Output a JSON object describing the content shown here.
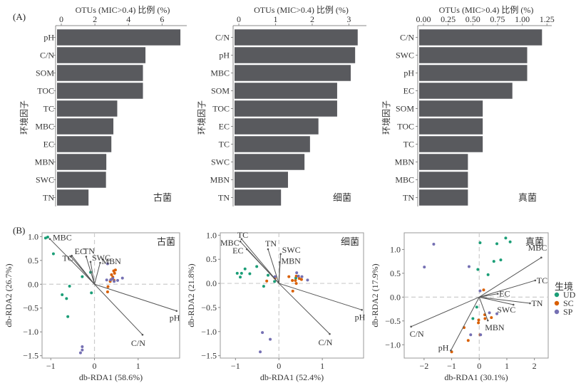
{
  "figure": {
    "panel_labels": [
      "(A)",
      "(B)"
    ],
    "legend": {
      "title": "生境",
      "entries": [
        {
          "label": "UD",
          "color": "#1b9e77"
        },
        {
          "label": "SC",
          "color": "#d95f02"
        },
        {
          "label": "SP",
          "color": "#7570b3"
        }
      ]
    },
    "colors": {
      "bar": "#595a5e",
      "vector": "#555555",
      "zero_line": "#cccccc"
    }
  },
  "chart_data": [
    {
      "type": "bar",
      "orientation": "horizontal",
      "title": "OTUs (MIC>0.4) 比例 (%)",
      "annotation": "古菌",
      "ylabel": "环境因子",
      "categories": [
        "pH",
        "C/N",
        "SOM",
        "TOC",
        "TC",
        "MBC",
        "EC",
        "MBN",
        "SWC",
        "TN"
      ],
      "values": [
        7.09,
        5.01,
        4.86,
        4.86,
        3.33,
        3.1,
        2.98,
        2.68,
        2.66,
        1.62
      ],
      "xticks": [
        "0",
        "2",
        "4",
        "6"
      ],
      "xtick_values": [
        0,
        2,
        4,
        6
      ],
      "xlim": [
        0,
        7.3
      ]
    },
    {
      "type": "bar",
      "orientation": "horizontal",
      "title": "OTUs (MIC>0.4) 比例 (%)",
      "annotation": "细菌",
      "ylabel": "环境因子",
      "categories": [
        "C/N",
        "pH",
        "MBC",
        "SOM",
        "TOC",
        "EC",
        "TC",
        "SWC",
        "MBN",
        "TN"
      ],
      "values": [
        3.24,
        3.17,
        3.05,
        2.68,
        2.68,
        2.17,
        1.94,
        1.79,
        1.34,
        1.15
      ],
      "xticks": [
        "0",
        "1",
        "2",
        "3"
      ],
      "xtick_values": [
        0,
        1,
        2,
        3
      ],
      "xlim": [
        0,
        3.4
      ]
    },
    {
      "type": "bar",
      "orientation": "horizontal",
      "title": "OTUs (MIC>0.4) 比例 (%)",
      "annotation": "真菌",
      "ylabel": "环境因子",
      "categories": [
        "C/N",
        "SWC",
        "pH",
        "EC",
        "SOM",
        "TOC",
        "TC",
        "MBN",
        "MBC",
        "TN"
      ],
      "values": [
        1.2,
        1.05,
        1.05,
        0.9,
        0.6,
        0.6,
        0.6,
        0.45,
        0.45,
        0.45
      ],
      "xticks": [
        "0.00",
        "0.25",
        "0.50",
        "0.75",
        "1.00",
        "1.25"
      ],
      "xtick_values": [
        0,
        0.25,
        0.5,
        0.75,
        1.0,
        1.25
      ],
      "xlim": [
        0,
        1.27
      ]
    },
    {
      "type": "scatter",
      "subtype": "db-RDA biplot",
      "annotation": "古菌",
      "xlabel": "db-RDA1 (58.6%)",
      "ylabel": "db-RDA2 (26.7%)",
      "xticks": [
        "−1",
        "0",
        "1"
      ],
      "xtick_values": [
        -1,
        0,
        1
      ],
      "yticks": [
        "1.0",
        "0.5",
        "0.0",
        "−0.5",
        "−1.0",
        "−1.5"
      ],
      "ytick_values": [
        1.0,
        0.5,
        0.0,
        -0.5,
        -1.0,
        -1.5
      ],
      "xlim": [
        -1.2,
        1.95
      ],
      "ylim": [
        -1.55,
        1.08
      ],
      "vectors": [
        {
          "label": "MBC",
          "x": -1.02,
          "y": 0.95
        },
        {
          "label": "TC",
          "x": -0.54,
          "y": 0.58
        },
        {
          "label": "EC",
          "x": -0.52,
          "y": 0.6
        },
        {
          "label": "TN",
          "x": -0.19,
          "y": 0.58
        },
        {
          "label": "SWC",
          "x": -0.09,
          "y": 0.47
        },
        {
          "label": "MBN",
          "x": 0.13,
          "y": 0.45
        },
        {
          "label": "pH",
          "x": 1.88,
          "y": -0.56
        },
        {
          "label": "C/N",
          "x": 1.1,
          "y": -1.06
        }
      ],
      "series": [
        {
          "name": "UD",
          "points": [
            [
              -1.12,
              0.97
            ],
            [
              -1.07,
              0.99
            ],
            [
              -0.94,
              0.64
            ],
            [
              -0.09,
              0.25
            ],
            [
              -0.28,
              0.16
            ],
            [
              -0.57,
              -0.04
            ],
            [
              -0.74,
              -0.22
            ],
            [
              -0.64,
              -0.3
            ],
            [
              -0.07,
              -0.18
            ],
            [
              -0.61,
              -0.68
            ]
          ]
        },
        {
          "name": "SC",
          "points": [
            [
              0.39,
              0.2
            ],
            [
              0.46,
              0.23
            ],
            [
              0.42,
              0.15
            ],
            [
              0.38,
              0.1
            ],
            [
              0.45,
              0.08
            ],
            [
              0.31,
              -0.05
            ],
            [
              0.3,
              -0.16
            ],
            [
              0.48,
              0.3
            ],
            [
              0.44,
              0.28
            ],
            [
              0.36,
              0.06
            ]
          ]
        },
        {
          "name": "SP",
          "points": [
            [
              0.28,
              0.09
            ],
            [
              0.37,
              0.09
            ],
            [
              0.45,
              0.06
            ],
            [
              0.53,
              0.08
            ],
            [
              0.64,
              0.13
            ],
            [
              0.3,
              0.43
            ],
            [
              0.42,
              0.12
            ],
            [
              -0.32,
              -1.44
            ],
            [
              -0.28,
              -1.38
            ],
            [
              -0.28,
              -1.31
            ]
          ]
        }
      ]
    },
    {
      "type": "scatter",
      "subtype": "db-RDA biplot",
      "annotation": "细菌",
      "xlabel": "db-RDA1 (52.4%)",
      "ylabel": "db-RDA2 (21.8%)",
      "xticks": [
        "−1",
        "0",
        "1"
      ],
      "xtick_values": [
        -1,
        0,
        1
      ],
      "yticks": [
        "1.0",
        "0.5",
        "0.0",
        "−0.5",
        "−1.0",
        "−1.5"
      ],
      "ytick_values": [
        1.0,
        0.5,
        0.0,
        -0.5,
        -1.0,
        -1.5
      ],
      "xlim": [
        -1.35,
        1.95
      ],
      "ylim": [
        -1.55,
        1.05
      ],
      "vectors": [
        {
          "label": "TC",
          "x": -0.86,
          "y": 0.92
        },
        {
          "label": "MBC",
          "x": -0.89,
          "y": 0.87
        },
        {
          "label": "EC",
          "x": -0.74,
          "y": 0.71
        },
        {
          "label": "TN",
          "x": -0.25,
          "y": 0.71
        },
        {
          "label": "SWC",
          "x": 0.04,
          "y": 0.61
        },
        {
          "label": "MBN",
          "x": 0.02,
          "y": 0.44
        },
        {
          "label": "pH",
          "x": 1.91,
          "y": -0.55
        },
        {
          "label": "C/N",
          "x": 1.17,
          "y": -1.05
        }
      ],
      "series": [
        {
          "name": "UD",
          "points": [
            [
              -0.96,
              0.21
            ],
            [
              -0.86,
              0.21
            ],
            [
              -0.78,
              0.3
            ],
            [
              -0.89,
              0.13
            ],
            [
              -0.67,
              0.2
            ],
            [
              -0.51,
              0.35
            ],
            [
              -0.25,
              0.17
            ],
            [
              -0.35,
              -0.06
            ],
            [
              -0.1,
              0.04
            ],
            [
              0.39,
              0.11
            ]
          ]
        },
        {
          "name": "SC",
          "points": [
            [
              -0.28,
              0.05
            ],
            [
              -0.09,
              0.11
            ],
            [
              0.23,
              0.14
            ],
            [
              0.31,
              0.06
            ],
            [
              0.38,
              0.06
            ],
            [
              0.47,
              0.1
            ],
            [
              0.52,
              0.08
            ],
            [
              0.32,
              -0.16
            ],
            [
              0.4,
              0.0
            ],
            [
              0.4,
              0.15
            ]
          ]
        },
        {
          "name": "SP",
          "points": [
            [
              -0.09,
              0.14
            ],
            [
              0.41,
              0.22
            ],
            [
              0.45,
              0.15
            ],
            [
              0.53,
              0.14
            ],
            [
              0.66,
              0.07
            ],
            [
              -0.38,
              -1.02
            ],
            [
              -0.2,
              -1.16
            ],
            [
              -0.43,
              -1.42
            ]
          ]
        }
      ]
    },
    {
      "type": "scatter",
      "subtype": "db-RDA biplot",
      "annotation": "真菌",
      "xlabel": "db-RDA1 (30.1%)",
      "ylabel": "db-RDA2 (17.9%)",
      "xticks": [
        "−2",
        "−1",
        "0",
        "1",
        "2"
      ],
      "xtick_values": [
        -2,
        -1,
        0,
        1,
        2
      ],
      "yticks": [
        "1.0",
        "0.5",
        "0.0",
        "−0.5",
        "−1.0"
      ],
      "ytick_values": [
        1.0,
        0.5,
        0.0,
        -0.5,
        -1.0
      ],
      "xlim": [
        -2.72,
        2.5
      ],
      "ylim": [
        -1.28,
        1.35
      ],
      "vectors": [
        {
          "label": "MBC",
          "x": 2.25,
          "y": 0.83
        },
        {
          "label": "TC",
          "x": 2.03,
          "y": 0.35
        },
        {
          "label": "EC",
          "x": 0.67,
          "y": 0.07
        },
        {
          "label": "TN",
          "x": 1.84,
          "y": -0.13
        },
        {
          "label": "SWC",
          "x": 1.24,
          "y": -0.16
        },
        {
          "label": "MBN",
          "x": 0.31,
          "y": -0.49
        },
        {
          "label": "C/N",
          "x": -2.47,
          "y": -0.62
        },
        {
          "label": "pH",
          "x": -1.03,
          "y": -1.12
        }
      ],
      "series": [
        {
          "name": "UD",
          "points": [
            [
              0.03,
              1.14
            ],
            [
              0.64,
              1.12
            ],
            [
              0.96,
              1.24
            ],
            [
              1.12,
              1.16
            ],
            [
              0.53,
              0.75
            ],
            [
              0.78,
              0.78
            ],
            [
              -0.05,
              0.58
            ],
            [
              0.32,
              0.47
            ],
            [
              -0.09,
              -0.21
            ],
            [
              -0.23,
              -0.45
            ]
          ]
        },
        {
          "name": "SC",
          "points": [
            [
              0.16,
              0.15
            ],
            [
              0.2,
              -0.37
            ],
            [
              0.21,
              -0.45
            ],
            [
              -0.02,
              -0.48
            ],
            [
              -0.03,
              -0.54
            ],
            [
              0.44,
              -0.43
            ],
            [
              -0.55,
              -0.64
            ],
            [
              0.03,
              -0.79
            ],
            [
              -0.4,
              -0.91
            ],
            [
              -1.0,
              -1.15
            ]
          ]
        },
        {
          "name": "SP",
          "points": [
            [
              -1.65,
              1.11
            ],
            [
              -1.99,
              0.63
            ],
            [
              -0.37,
              0.64
            ],
            [
              0.03,
              0.13
            ],
            [
              0.37,
              -0.33
            ],
            [
              0.64,
              -0.35
            ],
            [
              -0.31,
              -0.79
            ],
            [
              0.05,
              -0.79
            ]
          ]
        }
      ]
    }
  ]
}
